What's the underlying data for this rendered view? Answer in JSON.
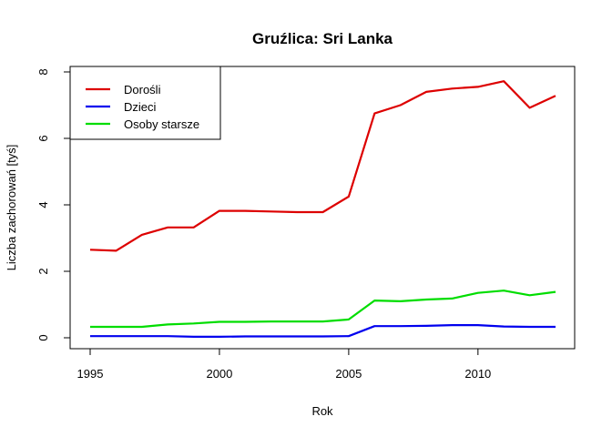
{
  "chart_data": {
    "type": "line",
    "title": "Gruźlica: Sri Lanka",
    "xlabel": "Rok",
    "ylabel": "Liczba zachorowań [tyś]",
    "xlim": [
      1995,
      2013
    ],
    "ylim": [
      0,
      8
    ],
    "x_ticks": [
      1995,
      2000,
      2005,
      2010
    ],
    "y_ticks": [
      0,
      2,
      4,
      6,
      8
    ],
    "x_tick_labels": [
      "1995",
      "2000",
      "2005",
      "2010"
    ],
    "y_tick_labels": [
      "0",
      "2",
      "4",
      "6",
      "8"
    ],
    "x": [
      1995,
      1996,
      1997,
      1998,
      1999,
      2000,
      2001,
      2002,
      2003,
      2004,
      2005,
      2006,
      2007,
      2008,
      2009,
      2010,
      2011,
      2012,
      2013
    ],
    "legend_position": "top-left",
    "grid": false,
    "series": [
      {
        "name": "Dorośli",
        "color": "#dd0000",
        "values": [
          2.65,
          2.62,
          3.1,
          3.32,
          3.32,
          3.82,
          3.82,
          3.8,
          3.78,
          3.78,
          4.25,
          6.75,
          7.0,
          7.4,
          7.5,
          7.55,
          7.72,
          6.92,
          7.28
        ]
      },
      {
        "name": "Dzieci",
        "color": "#0000ee",
        "values": [
          0.05,
          0.05,
          0.05,
          0.05,
          0.03,
          0.03,
          0.04,
          0.04,
          0.04,
          0.04,
          0.05,
          0.35,
          0.35,
          0.36,
          0.38,
          0.38,
          0.34,
          0.33,
          0.33
        ]
      },
      {
        "name": "Osoby starsze",
        "color": "#00dd00",
        "values": [
          0.33,
          0.33,
          0.33,
          0.4,
          0.43,
          0.48,
          0.48,
          0.49,
          0.49,
          0.49,
          0.55,
          1.12,
          1.1,
          1.15,
          1.18,
          1.35,
          1.42,
          1.28,
          1.38
        ]
      }
    ]
  }
}
